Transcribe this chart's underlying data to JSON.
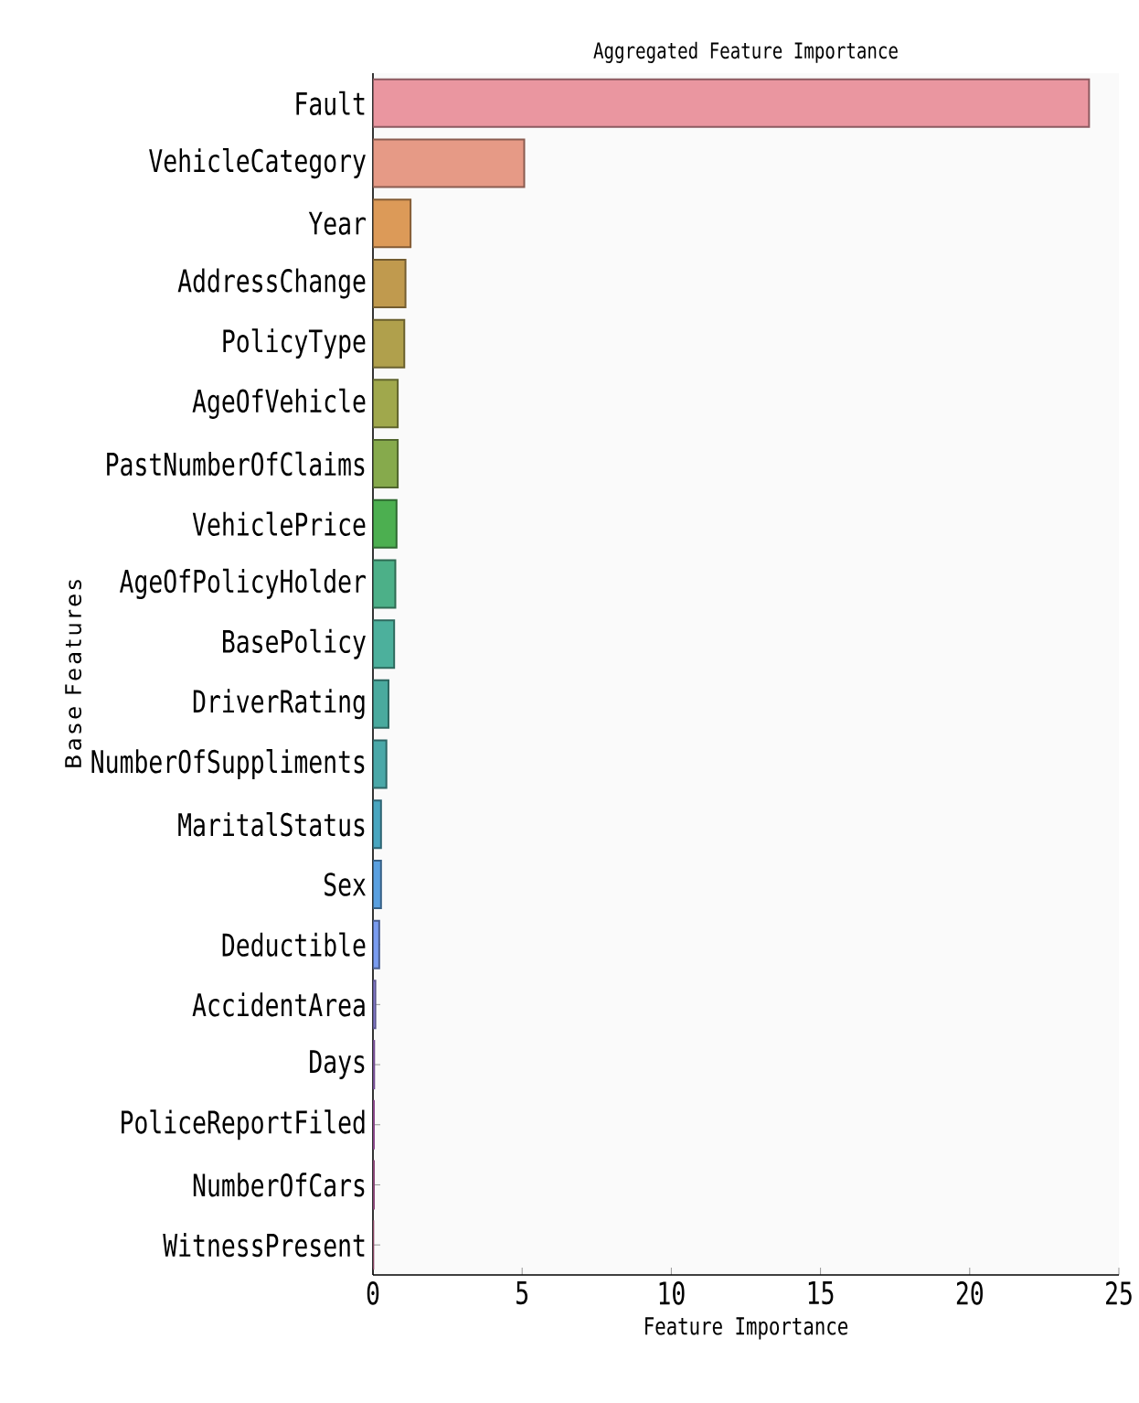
{
  "chart_data": {
    "type": "bar",
    "orientation": "horizontal",
    "title": "Aggregated Feature Importance",
    "xlabel": "Feature Importance",
    "ylabel": "Base Features",
    "categories": [
      "Fault",
      "VehicleCategory",
      "Year",
      "AddressChange",
      "PolicyType",
      "AgeOfVehicle",
      "PastNumberOfClaims",
      "VehiclePrice",
      "AgeOfPolicyHolder",
      "BasePolicy",
      "DriverRating",
      "NumberOfSuppliments",
      "MaritalStatus",
      "Sex",
      "Deductible",
      "AccidentArea",
      "Days",
      "PoliceReportFiled",
      "NumberOfCars",
      "WitnessPresent"
    ],
    "values": [
      24.0,
      5.07,
      1.26,
      1.09,
      1.05,
      0.83,
      0.83,
      0.79,
      0.75,
      0.71,
      0.52,
      0.45,
      0.27,
      0.27,
      0.21,
      0.08,
      0.04,
      0.03,
      0.03,
      0.01
    ],
    "colors": [
      "#ea96a0",
      "#e69a86",
      "#dc9a58",
      "#c09a4e",
      "#b0a04c",
      "#a0a84c",
      "#86aa4c",
      "#4caf50",
      "#4cb088",
      "#4cb09c",
      "#4aaa9e",
      "#4aa8a8",
      "#4aa6c0",
      "#5aa0e0",
      "#7a9cf0",
      "#9a90f0",
      "#c080f0",
      "#e070e0",
      "#e070c0",
      "#e070a0"
    ],
    "xlim": [
      0,
      25
    ],
    "xticks": [
      0,
      5,
      10,
      15,
      20,
      25
    ]
  }
}
